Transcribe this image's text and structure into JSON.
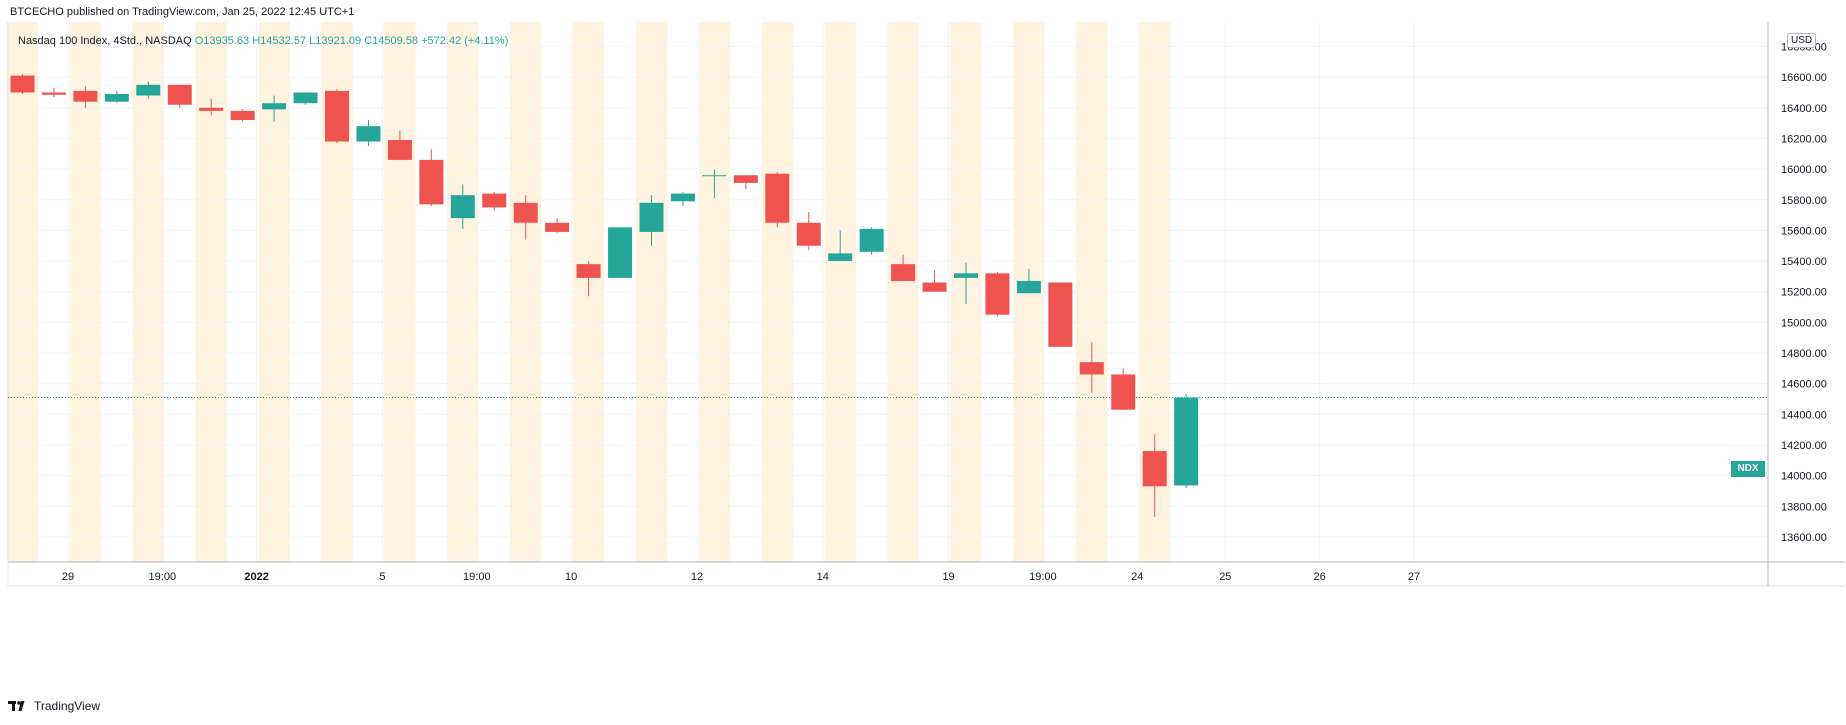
{
  "header": {
    "published_line": "BTCECHO published on TradingView.com, Jan 25, 2022 12:45 UTC+1"
  },
  "legend": {
    "symbol_label": "Nasdaq 100 Index, 4Std., NASDAQ",
    "open_label": "O",
    "open": "13935.63",
    "high_label": "H",
    "high": "14532.57",
    "low_label": "L",
    "low": "13921.09",
    "close_label": "C",
    "close": "14509.58",
    "change": "+572.42 (+4.11%)"
  },
  "currency": "USD",
  "symbol_tag": "NDX",
  "footer": {
    "brand": "TradingView"
  },
  "colors": {
    "up": "#26a69a",
    "down": "#ef5350",
    "session_band": "#fff3e0",
    "grid": "#f0f3fa",
    "last_price_line": "#26a69a"
  },
  "chart_data": {
    "type": "candlestick",
    "title": "Nasdaq 100 Index, 4Std., NASDAQ",
    "ylim": [
      13500,
      16900
    ],
    "y_ticks": [
      13600,
      13800,
      14000,
      14200,
      14400,
      14600,
      14800,
      15000,
      15200,
      15400,
      15600,
      15800,
      16000,
      16200,
      16400,
      16600,
      16800
    ],
    "x_ticks": [
      {
        "label": "29",
        "bar": 1.7,
        "bold": false
      },
      {
        "label": "19:00",
        "bar": 4.7,
        "bold": false
      },
      {
        "label": "2022",
        "bar": 7.7,
        "bold": true
      },
      {
        "label": "5",
        "bar": 11.7,
        "bold": false
      },
      {
        "label": "19:00",
        "bar": 14.7,
        "bold": false
      },
      {
        "label": "10",
        "bar": 17.7,
        "bold": false
      },
      {
        "label": "12",
        "bar": 21.7,
        "bold": false
      },
      {
        "label": "14",
        "bar": 25.7,
        "bold": false
      },
      {
        "label": "19",
        "bar": 29.7,
        "bold": false
      },
      {
        "label": "19:00",
        "bar": 32.7,
        "bold": false
      },
      {
        "label": "24",
        "bar": 35.7,
        "bold": false
      },
      {
        "label": "25",
        "bar": 38.5,
        "bold": false
      },
      {
        "label": "26",
        "bar": 41.5,
        "bold": false
      },
      {
        "label": "27",
        "bar": 44.5,
        "bold": false
      }
    ],
    "session_band_bars": [
      0,
      2,
      4,
      6,
      8,
      10,
      12,
      14,
      16,
      18,
      20,
      22,
      24,
      26,
      28,
      30,
      32,
      34,
      36
    ],
    "last_price": 14509.58,
    "candles": [
      {
        "o": 16610,
        "h": 16620,
        "l": 16490,
        "c": 16500
      },
      {
        "o": 16500,
        "h": 16530,
        "l": 16470,
        "c": 16485
      },
      {
        "o": 16510,
        "h": 16540,
        "l": 16400,
        "c": 16440
      },
      {
        "o": 16440,
        "h": 16510,
        "l": 16430,
        "c": 16490
      },
      {
        "o": 16480,
        "h": 16570,
        "l": 16460,
        "c": 16550
      },
      {
        "o": 16550,
        "h": 16550,
        "l": 16400,
        "c": 16420
      },
      {
        "o": 16400,
        "h": 16460,
        "l": 16350,
        "c": 16380
      },
      {
        "o": 16380,
        "h": 16390,
        "l": 16310,
        "c": 16320
      },
      {
        "o": 16390,
        "h": 16480,
        "l": 16310,
        "c": 16430
      },
      {
        "o": 16430,
        "h": 16500,
        "l": 16420,
        "c": 16500
      },
      {
        "o": 16510,
        "h": 16520,
        "l": 16170,
        "c": 16180
      },
      {
        "o": 16180,
        "h": 16320,
        "l": 16150,
        "c": 16280
      },
      {
        "o": 16190,
        "h": 16250,
        "l": 16060,
        "c": 16060
      },
      {
        "o": 16060,
        "h": 16130,
        "l": 15760,
        "c": 15770
      },
      {
        "o": 15680,
        "h": 15900,
        "l": 15610,
        "c": 15830
      },
      {
        "o": 15840,
        "h": 15850,
        "l": 15730,
        "c": 15750
      },
      {
        "o": 15780,
        "h": 15830,
        "l": 15540,
        "c": 15650
      },
      {
        "o": 15650,
        "h": 15680,
        "l": 15580,
        "c": 15590
      },
      {
        "o": 15380,
        "h": 15400,
        "l": 15170,
        "c": 15290
      },
      {
        "o": 15290,
        "h": 15620,
        "l": 15290,
        "c": 15620
      },
      {
        "o": 15590,
        "h": 15830,
        "l": 15500,
        "c": 15780
      },
      {
        "o": 15790,
        "h": 15850,
        "l": 15760,
        "c": 15840
      },
      {
        "o": 15960,
        "h": 16000,
        "l": 15810,
        "c": 15960
      },
      {
        "o": 15960,
        "h": 15960,
        "l": 15870,
        "c": 15910
      },
      {
        "o": 15970,
        "h": 15980,
        "l": 15620,
        "c": 15650
      },
      {
        "o": 15650,
        "h": 15720,
        "l": 15470,
        "c": 15500
      },
      {
        "o": 15400,
        "h": 15600,
        "l": 15400,
        "c": 15450
      },
      {
        "o": 15460,
        "h": 15620,
        "l": 15440,
        "c": 15610
      },
      {
        "o": 15380,
        "h": 15440,
        "l": 15270,
        "c": 15270
      },
      {
        "o": 15260,
        "h": 15340,
        "l": 15200,
        "c": 15200
      },
      {
        "o": 15290,
        "h": 15390,
        "l": 15120,
        "c": 15320
      },
      {
        "o": 15320,
        "h": 15330,
        "l": 15040,
        "c": 15050
      },
      {
        "o": 15190,
        "h": 15350,
        "l": 15190,
        "c": 15270
      },
      {
        "o": 15260,
        "h": 15260,
        "l": 14840,
        "c": 14840
      },
      {
        "o": 14740,
        "h": 14870,
        "l": 14540,
        "c": 14660
      },
      {
        "o": 14660,
        "h": 14700,
        "l": 14430,
        "c": 14430
      },
      {
        "o": 14160,
        "h": 14270,
        "l": 13730,
        "c": 13930
      },
      {
        "o": 13935.63,
        "h": 14532.57,
        "l": 13921.09,
        "c": 14509.58
      }
    ]
  }
}
